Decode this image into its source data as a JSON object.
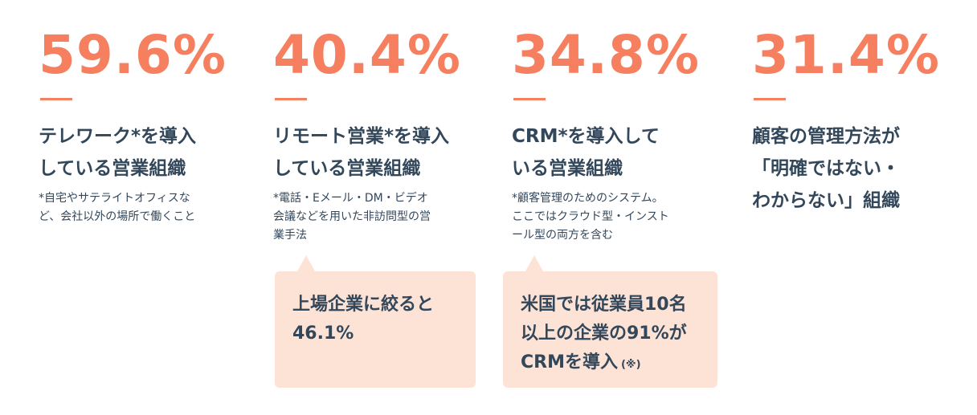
{
  "stats": [
    {
      "value": "59.6%",
      "heading": [
        "テレワーク*を導入",
        "している営業組織"
      ],
      "note": [
        "*自宅やサテライトオフィスな",
        "ど、会社以外の場所で働くこと"
      ]
    },
    {
      "value": "40.4%",
      "heading": [
        "リモート営業*を導入",
        "している営業組織"
      ],
      "note": [
        "*電話・Eメール・DM・ビデオ",
        "会議などを用いた非訪問型の営",
        "業手法"
      ],
      "callout": {
        "lines": [
          "上場企業に絞ると",
          "46.1%"
        ]
      }
    },
    {
      "value": "34.8%",
      "heading": [
        "CRM*を導入して",
        "いる営業組織"
      ],
      "note": [
        "*顧客管理のためのシステム。",
        "ここではクラウド型・インスト",
        "ール型の両方を含む"
      ],
      "callout": {
        "lines": [
          "米国では従業員10名",
          "以上の企業の91%が",
          "CRMを導入"
        ],
        "suffix": "(※)"
      }
    },
    {
      "value": "31.4%",
      "heading": [
        "顧客の管理方法が",
        "「明確ではない・",
        "わからない」組織"
      ]
    }
  ]
}
